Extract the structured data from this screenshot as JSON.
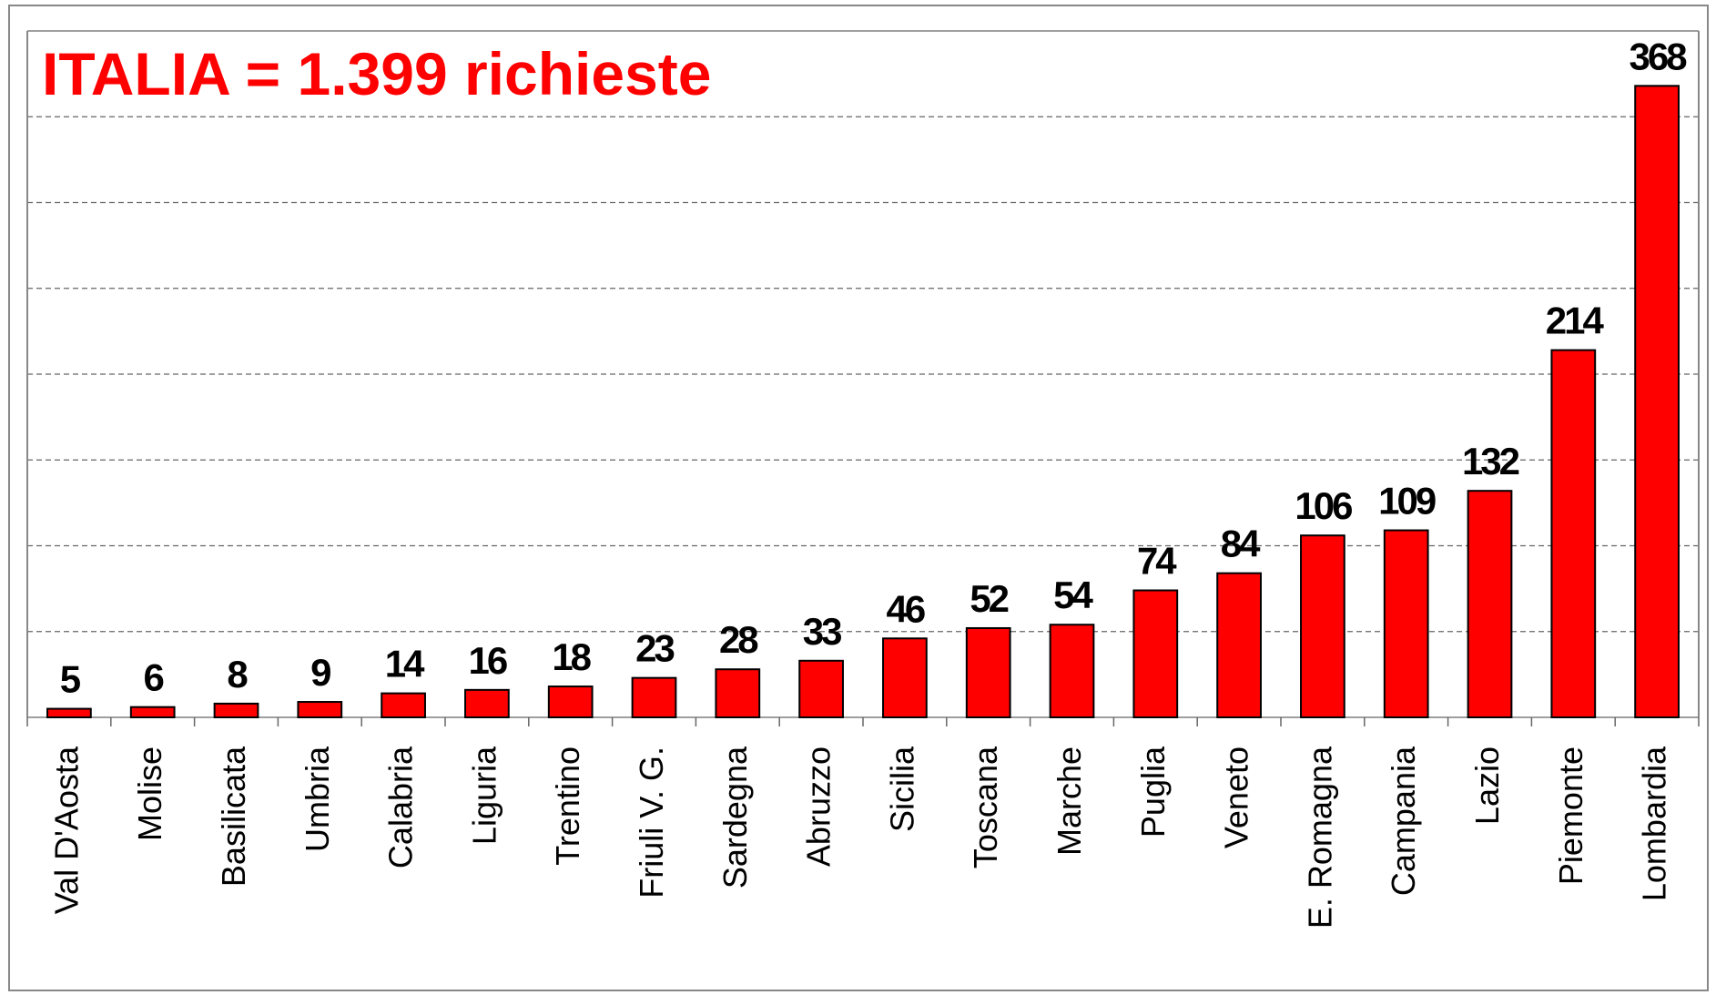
{
  "chart_data": {
    "type": "bar",
    "title": "ITALIA = 1.399 richieste",
    "categories": [
      "Val D'Aosta",
      "Molise",
      "Basilicata",
      "Umbria",
      "Calabria",
      "Liguria",
      "Trentino",
      "Friuli V. G.",
      "Sardegna",
      "Abruzzo",
      "Sicilia",
      "Toscana",
      "Marche",
      "Puglia",
      "Veneto",
      "E. Romagna",
      "Campania",
      "Lazio",
      "Piemonte",
      "Lombardia"
    ],
    "values": [
      5,
      6,
      8,
      9,
      14,
      16,
      18,
      23,
      28,
      33,
      46,
      52,
      54,
      74,
      84,
      106,
      109,
      132,
      214,
      368
    ],
    "color": "#ff0000",
    "ylim": [
      0,
      400
    ],
    "yticks": [
      0,
      50,
      100,
      150,
      200,
      250,
      300,
      350,
      400
    ],
    "grid": true
  }
}
